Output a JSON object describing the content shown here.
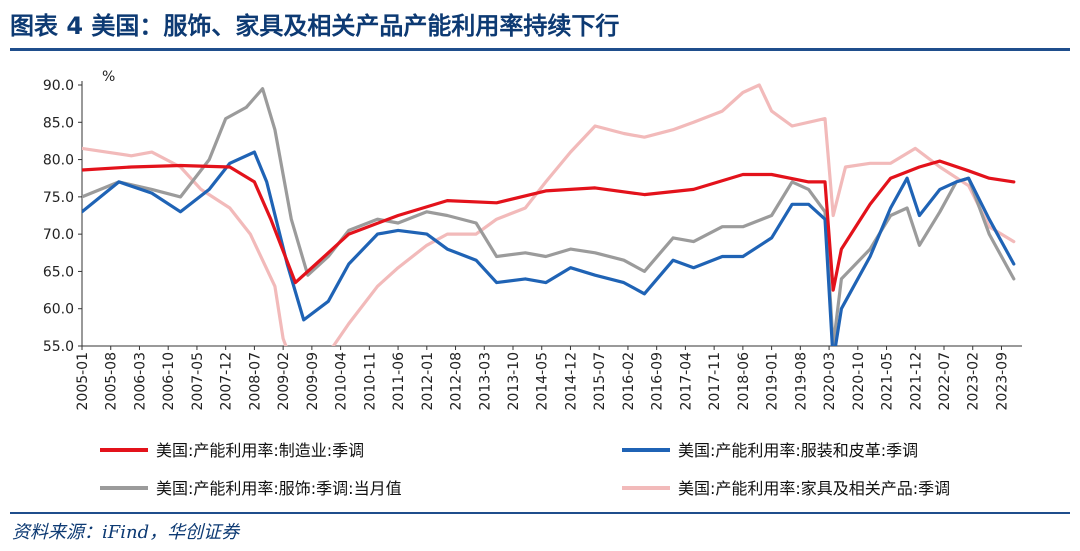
{
  "title": "图表 4   美国：服饰、家具及相关产品产能利用率持续下行",
  "source": "资料来源：iFind，华创证券",
  "chart_data": {
    "type": "line",
    "ylabel": "%",
    "ylim": [
      55,
      90
    ],
    "yticks": [
      "90.0",
      "85.0",
      "80.0",
      "75.0",
      "70.0",
      "65.0",
      "60.0",
      "55.0"
    ],
    "xticks": [
      "2005-01",
      "2005-08",
      "2006-03",
      "2006-10",
      "2007-05",
      "2007-12",
      "2008-07",
      "2009-02",
      "2009-09",
      "2010-04",
      "2010-11",
      "2011-06",
      "2012-01",
      "2012-08",
      "2013-03",
      "2013-10",
      "2014-05",
      "2014-12",
      "2015-07",
      "2016-02",
      "2016-09",
      "2017-04",
      "2017-11",
      "2018-06",
      "2019-01",
      "2019-08",
      "2020-03",
      "2020-10",
      "2021-05",
      "2021-12",
      "2022-07",
      "2023-02",
      "2023-09"
    ],
    "x_start": "2005-01",
    "legend_position": "bottom",
    "series": [
      {
        "name": "美国:产能利用率:制造业:季调",
        "color": "#e3121b",
        "points": [
          [
            "2005-01",
            78.6
          ],
          [
            "2006-01",
            79.0
          ],
          [
            "2007-01",
            79.2
          ],
          [
            "2008-01",
            79.0
          ],
          [
            "2008-07",
            77.0
          ],
          [
            "2008-11",
            72.0
          ],
          [
            "2009-05",
            63.5
          ],
          [
            "2009-10",
            66.0
          ],
          [
            "2010-06",
            70.0
          ],
          [
            "2011-06",
            72.5
          ],
          [
            "2012-06",
            74.5
          ],
          [
            "2013-06",
            74.2
          ],
          [
            "2014-06",
            75.8
          ],
          [
            "2015-06",
            76.2
          ],
          [
            "2016-06",
            75.3
          ],
          [
            "2017-06",
            76.0
          ],
          [
            "2018-06",
            78.0
          ],
          [
            "2019-01",
            78.0
          ],
          [
            "2019-10",
            77.0
          ],
          [
            "2020-02",
            77.0
          ],
          [
            "2020-04",
            62.5
          ],
          [
            "2020-06",
            68.0
          ],
          [
            "2021-01",
            74.0
          ],
          [
            "2021-06",
            77.5
          ],
          [
            "2022-01",
            79.0
          ],
          [
            "2022-06",
            79.8
          ],
          [
            "2023-01",
            78.5
          ],
          [
            "2023-06",
            77.5
          ],
          [
            "2023-12",
            77.0
          ]
        ]
      },
      {
        "name": "美国:产能利用率:服装和皮革:季调",
        "color": "#1f63b5",
        "points": [
          [
            "2005-01",
            73.0
          ],
          [
            "2005-10",
            77.0
          ],
          [
            "2006-06",
            75.5
          ],
          [
            "2007-01",
            73.0
          ],
          [
            "2007-08",
            76.0
          ],
          [
            "2008-01",
            79.5
          ],
          [
            "2008-07",
            81.0
          ],
          [
            "2008-10",
            77.0
          ],
          [
            "2009-03",
            66.0
          ],
          [
            "2009-07",
            58.5
          ],
          [
            "2010-01",
            61.0
          ],
          [
            "2010-06",
            66.0
          ],
          [
            "2011-01",
            70.0
          ],
          [
            "2011-06",
            70.5
          ],
          [
            "2012-01",
            70.0
          ],
          [
            "2012-06",
            68.0
          ],
          [
            "2013-01",
            66.5
          ],
          [
            "2013-06",
            63.5
          ],
          [
            "2014-01",
            64.0
          ],
          [
            "2014-06",
            63.5
          ],
          [
            "2014-12",
            65.5
          ],
          [
            "2015-06",
            64.5
          ],
          [
            "2016-01",
            63.5
          ],
          [
            "2016-06",
            62.0
          ],
          [
            "2017-01",
            66.5
          ],
          [
            "2017-06",
            65.5
          ],
          [
            "2018-01",
            67.0
          ],
          [
            "2018-06",
            67.0
          ],
          [
            "2019-01",
            69.5
          ],
          [
            "2019-06",
            74.0
          ],
          [
            "2019-10",
            74.0
          ],
          [
            "2020-02",
            72.0
          ],
          [
            "2020-04",
            53.0
          ],
          [
            "2020-06",
            60.0
          ],
          [
            "2021-01",
            67.0
          ],
          [
            "2021-06",
            73.5
          ],
          [
            "2021-10",
            77.5
          ],
          [
            "2022-01",
            72.5
          ],
          [
            "2022-06",
            76.0
          ],
          [
            "2022-10",
            77.0
          ],
          [
            "2023-01",
            77.5
          ],
          [
            "2023-06",
            72.0
          ],
          [
            "2023-12",
            66.0
          ]
        ]
      },
      {
        "name": "美国:产能利用率:服饰:季调:当月值",
        "color": "#9b9b9b",
        "points": [
          [
            "2005-01",
            75.0
          ],
          [
            "2005-10",
            77.0
          ],
          [
            "2006-06",
            76.0
          ],
          [
            "2007-01",
            75.0
          ],
          [
            "2007-08",
            80.0
          ],
          [
            "2007-12",
            85.5
          ],
          [
            "2008-05",
            87.0
          ],
          [
            "2008-09",
            89.5
          ],
          [
            "2008-12",
            84.0
          ],
          [
            "2009-04",
            72.0
          ],
          [
            "2009-08",
            64.5
          ],
          [
            "2010-01",
            67.0
          ],
          [
            "2010-06",
            70.5
          ],
          [
            "2011-01",
            72.0
          ],
          [
            "2011-06",
            71.5
          ],
          [
            "2012-01",
            73.0
          ],
          [
            "2012-06",
            72.5
          ],
          [
            "2013-01",
            71.5
          ],
          [
            "2013-06",
            67.0
          ],
          [
            "2014-01",
            67.5
          ],
          [
            "2014-06",
            67.0
          ],
          [
            "2014-12",
            68.0
          ],
          [
            "2015-06",
            67.5
          ],
          [
            "2016-01",
            66.5
          ],
          [
            "2016-06",
            65.0
          ],
          [
            "2017-01",
            69.5
          ],
          [
            "2017-06",
            69.0
          ],
          [
            "2018-01",
            71.0
          ],
          [
            "2018-06",
            71.0
          ],
          [
            "2019-01",
            72.5
          ],
          [
            "2019-06",
            77.0
          ],
          [
            "2019-10",
            76.0
          ],
          [
            "2020-02",
            73.0
          ],
          [
            "2020-04",
            55.0
          ],
          [
            "2020-06",
            64.0
          ],
          [
            "2021-01",
            68.0
          ],
          [
            "2021-06",
            72.5
          ],
          [
            "2021-10",
            73.5
          ],
          [
            "2022-01",
            68.5
          ],
          [
            "2022-06",
            73.0
          ],
          [
            "2022-10",
            77.0
          ],
          [
            "2023-01",
            77.5
          ],
          [
            "2023-06",
            70.0
          ],
          [
            "2023-12",
            64.0
          ]
        ]
      },
      {
        "name": "美国:产能利用率:家具及相关产品:季调",
        "color": "#f2baba",
        "points": [
          [
            "2005-01",
            81.5
          ],
          [
            "2006-01",
            80.5
          ],
          [
            "2006-06",
            81.0
          ],
          [
            "2007-01",
            79.0
          ],
          [
            "2007-06",
            76.0
          ],
          [
            "2008-01",
            73.5
          ],
          [
            "2008-06",
            70.0
          ],
          [
            "2008-12",
            63.0
          ],
          [
            "2009-02",
            56.0
          ],
          [
            "2009-06",
            50.0
          ],
          [
            "2009-10",
            50.0
          ],
          [
            "2010-01",
            54.0
          ],
          [
            "2010-06",
            58.0
          ],
          [
            "2011-01",
            63.0
          ],
          [
            "2011-06",
            65.5
          ],
          [
            "2012-01",
            68.5
          ],
          [
            "2012-06",
            70.0
          ],
          [
            "2013-01",
            70.0
          ],
          [
            "2013-06",
            72.0
          ],
          [
            "2014-01",
            73.5
          ],
          [
            "2014-06",
            77.0
          ],
          [
            "2014-12",
            81.0
          ],
          [
            "2015-06",
            84.5
          ],
          [
            "2016-01",
            83.5
          ],
          [
            "2016-06",
            83.0
          ],
          [
            "2017-01",
            84.0
          ],
          [
            "2017-06",
            85.0
          ],
          [
            "2018-01",
            86.5
          ],
          [
            "2018-06",
            89.0
          ],
          [
            "2018-10",
            90.0
          ],
          [
            "2019-01",
            86.5
          ],
          [
            "2019-06",
            84.5
          ],
          [
            "2020-02",
            85.5
          ],
          [
            "2020-04",
            72.5
          ],
          [
            "2020-07",
            79.0
          ],
          [
            "2021-01",
            79.5
          ],
          [
            "2021-06",
            79.5
          ],
          [
            "2021-12",
            81.5
          ],
          [
            "2022-06",
            79.0
          ],
          [
            "2023-01",
            76.5
          ],
          [
            "2023-06",
            71.0
          ],
          [
            "2023-12",
            69.0
          ]
        ]
      }
    ]
  }
}
